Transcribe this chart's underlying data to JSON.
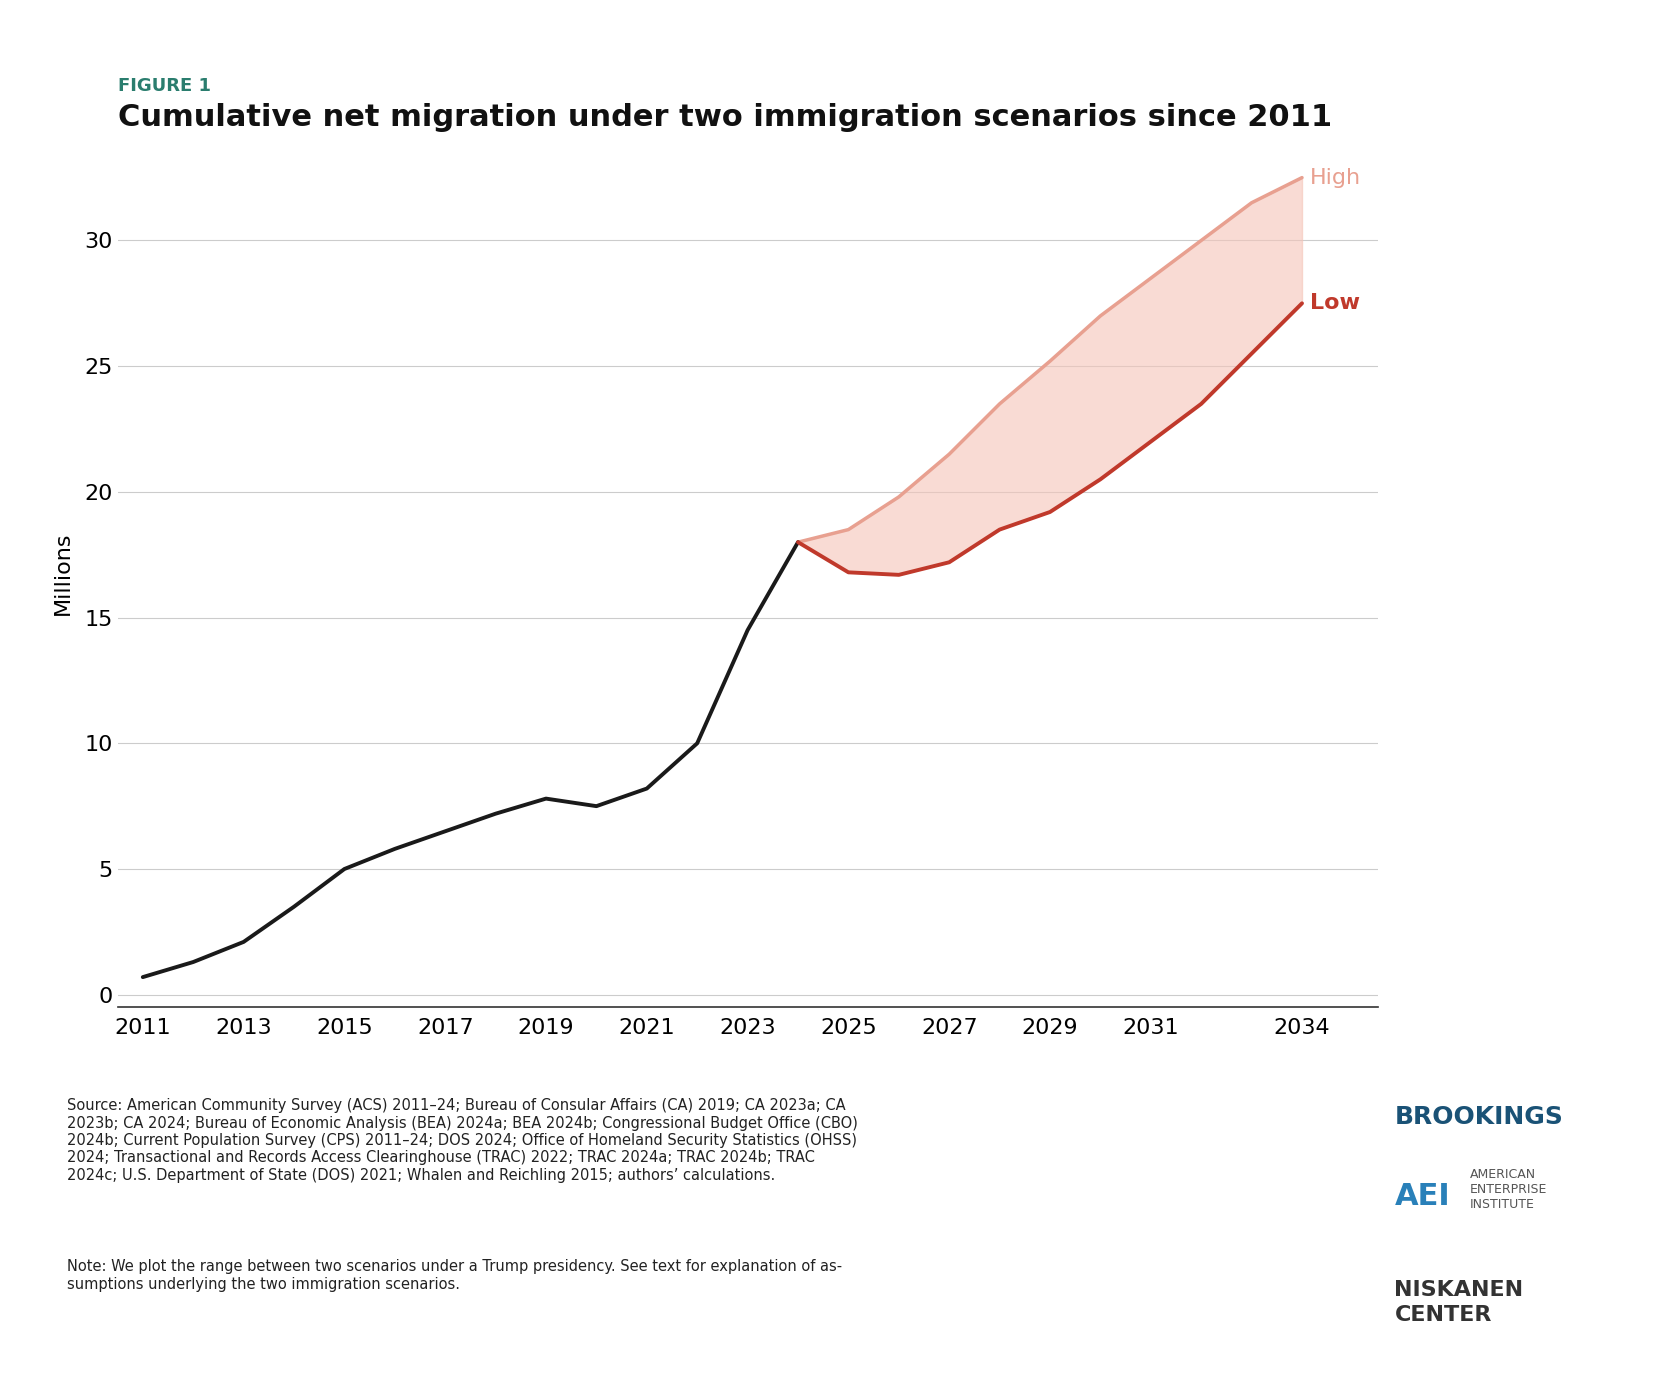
{
  "title_label": "FIGURE 1",
  "title": "Cumulative net migration under two immigration scenarios since 2011",
  "ylabel": "Millions",
  "title_label_color": "#2a7d6e",
  "background_color": "#ffffff",
  "historical_x": [
    2011,
    2012,
    2013,
    2014,
    2015,
    2016,
    2017,
    2018,
    2019,
    2020,
    2021,
    2022,
    2023,
    2024
  ],
  "historical_y": [
    0.7,
    1.3,
    2.1,
    3.5,
    5.0,
    5.8,
    6.5,
    7.2,
    7.8,
    7.5,
    8.2,
    10.0,
    14.5,
    18.0
  ],
  "historical_color": "#1a1a1a",
  "low_x": [
    2024,
    2025,
    2026,
    2027,
    2028,
    2029,
    2030,
    2031,
    2032,
    2033,
    2034
  ],
  "low_y": [
    18.0,
    16.8,
    16.7,
    17.2,
    18.5,
    19.2,
    20.5,
    22.0,
    23.5,
    25.5,
    27.5
  ],
  "low_color": "#c0392b",
  "high_x": [
    2024,
    2025,
    2026,
    2027,
    2028,
    2029,
    2030,
    2031,
    2032,
    2033,
    2034
  ],
  "high_y": [
    18.0,
    18.5,
    19.8,
    21.5,
    23.5,
    25.2,
    27.0,
    28.5,
    30.0,
    31.5,
    32.5
  ],
  "high_color": "#e8a090",
  "fill_color": "#f5c4b8",
  "fill_alpha": 0.6,
  "yticks": [
    0,
    5,
    10,
    15,
    20,
    25,
    30
  ],
  "xticks": [
    2011,
    2013,
    2015,
    2017,
    2019,
    2021,
    2023,
    2025,
    2027,
    2029,
    2031,
    2034
  ],
  "ylim": [
    -0.5,
    34
  ],
  "xlim": [
    2010.5,
    2035.5
  ],
  "grid_color": "#cccccc",
  "source_text": "Source: American Community Survey (ACS) 2011–24; Bureau of Consular Affairs (CA) 2019; CA 2023a; CA\n2023b; CA 2024; Bureau of Economic Analysis (BEA) 2024a; BEA 2024b; Congressional Budget Office (CBO)\n2024b; Current Population Survey (CPS) 2011–24; DOS 2024; Office of Homeland Security Statistics (OHSS)\n2024; Transactional and Records Access Clearinghouse (TRAC) 2022; TRAC 2024a; TRAC 2024b; TRAC\n2024c; U.S. Department of State (DOS) 2021; Whalen and Reichling 2015; authors’ calculations.",
  "note_text": "Note: We plot the range between two scenarios under a Trump presidency. See text for explanation of as-\nsumptions underlying the two immigration scenarios.",
  "label_high": "High",
  "label_low": "Low",
  "label_high_color": "#e8a090",
  "label_low_color": "#c0392b"
}
